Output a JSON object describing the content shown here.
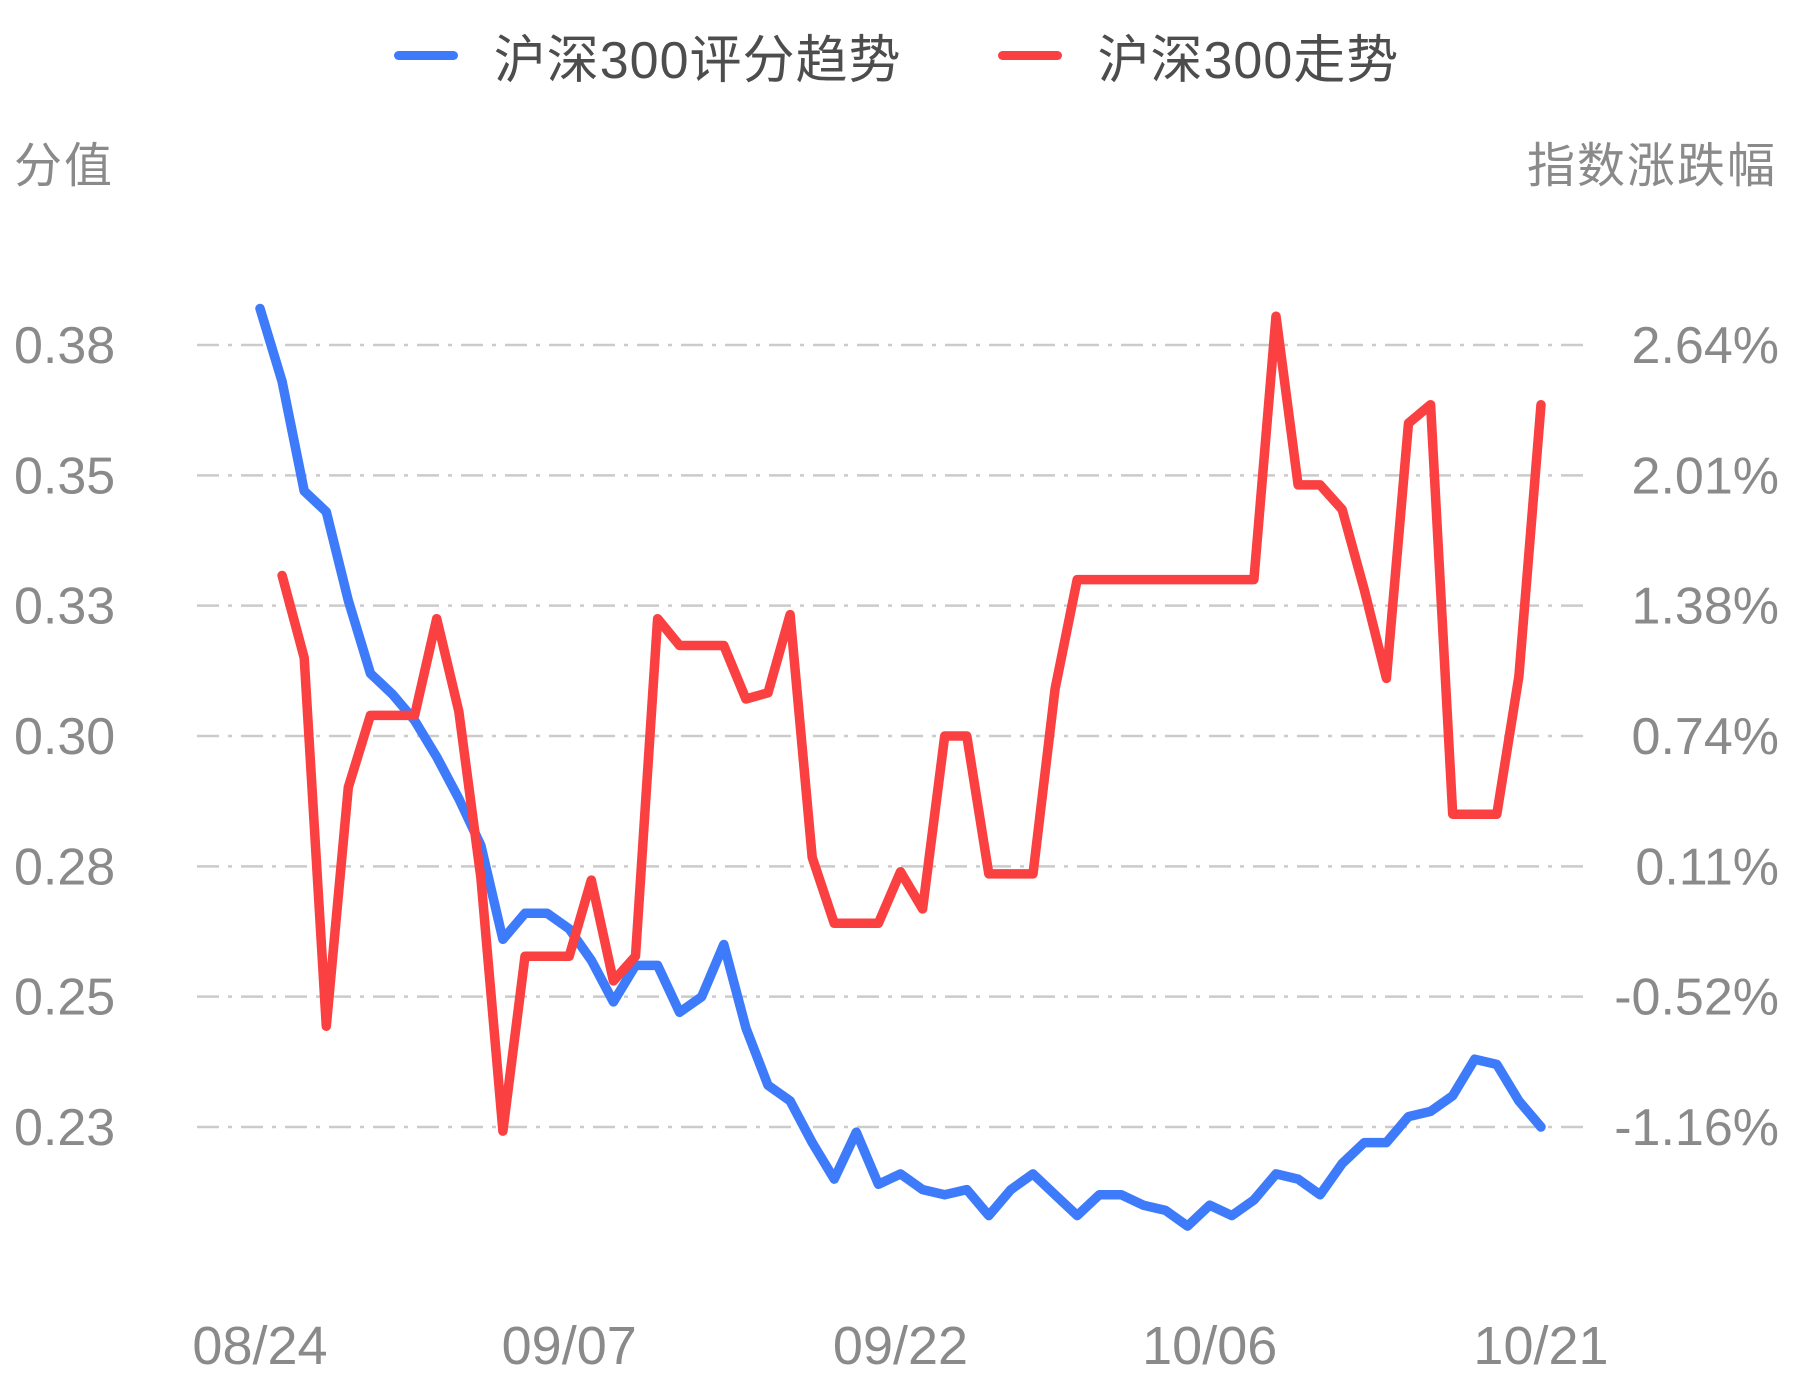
{
  "legend": {
    "items": [
      {
        "label": "沪深300评分趋势",
        "color": "#3e7bfa"
      },
      {
        "label": "沪深300走势",
        "color": "#fa4040"
      }
    ]
  },
  "axes": {
    "left_title": "分值",
    "right_title": "指数涨跌幅"
  },
  "colors": {
    "score_line": "#3e7bfa",
    "index_line": "#fa4040",
    "gridline": "#cbcbcb",
    "tick_text": "#8a8a8a",
    "legend_text": "#4d4d4d",
    "background": "#ffffff"
  },
  "chart_data": {
    "type": "line",
    "title": "",
    "legend_position": "top",
    "grid": true,
    "x": [
      "08/24",
      "08/25",
      "08/26",
      "08/27",
      "08/28",
      "08/29",
      "08/30",
      "08/31",
      "09/01",
      "09/02",
      "09/03",
      "09/04",
      "09/05",
      "09/06",
      "09/07",
      "09/08",
      "09/09",
      "09/10",
      "09/11",
      "09/12",
      "09/13",
      "09/14",
      "09/15",
      "09/16",
      "09/17",
      "09/18",
      "09/19",
      "09/20",
      "09/21",
      "09/22",
      "09/23",
      "09/24",
      "09/25",
      "09/26",
      "09/27",
      "09/28",
      "09/29",
      "09/30",
      "10/01",
      "10/02",
      "10/03",
      "10/04",
      "10/05",
      "10/06",
      "10/07",
      "10/08",
      "10/09",
      "10/10",
      "10/11",
      "10/12",
      "10/13",
      "10/14",
      "10/15",
      "10/16",
      "10/17",
      "10/18",
      "10/19",
      "10/20",
      "10/21"
    ],
    "x_tick_labels": [
      "08/24",
      "09/07",
      "09/22",
      "10/06",
      "10/21"
    ],
    "x_tick_indices": [
      0,
      14,
      29,
      43,
      58
    ],
    "left_axis": {
      "title": "分值",
      "tick_labels": [
        "0.38",
        "0.35",
        "0.33",
        "0.30",
        "0.28",
        "0.25",
        "0.23"
      ],
      "max": 0.38,
      "min": 0.23
    },
    "right_axis": {
      "title": "指数涨跌幅",
      "tick_labels": [
        "2.64%",
        "2.01%",
        "1.38%",
        "0.74%",
        "0.11%",
        "-0.52%",
        "-1.16%"
      ],
      "max": 2.64,
      "min": -1.16
    },
    "series": [
      {
        "name": "沪深300评分趋势",
        "axis": "left",
        "color": "#3e7bfa",
        "values": [
          0.387,
          0.373,
          0.352,
          0.348,
          0.331,
          0.317,
          0.313,
          0.308,
          0.301,
          0.293,
          0.284,
          0.266,
          0.271,
          0.271,
          0.268,
          0.262,
          0.254,
          0.261,
          0.261,
          0.252,
          0.255,
          0.265,
          0.249,
          0.238,
          0.235,
          0.227,
          0.22,
          0.229,
          0.219,
          0.221,
          0.218,
          0.217,
          0.218,
          0.213,
          0.218,
          0.221,
          0.217,
          0.213,
          0.217,
          0.217,
          0.215,
          0.214,
          0.211,
          0.215,
          0.213,
          0.216,
          0.221,
          0.22,
          0.217,
          0.223,
          0.227,
          0.227,
          0.232,
          0.233,
          0.236,
          0.243,
          0.242,
          0.235,
          0.23
        ]
      },
      {
        "name": "沪深300走势",
        "axis": "right",
        "color": "#fa4040",
        "values": [
          null,
          1.52,
          1.12,
          -0.67,
          0.49,
          0.84,
          0.84,
          0.84,
          1.31,
          0.86,
          0.05,
          -1.18,
          -0.33,
          -0.33,
          -0.33,
          0.04,
          -0.45,
          -0.33,
          1.31,
          1.18,
          1.18,
          1.18,
          0.92,
          0.95,
          1.33,
          0.15,
          -0.17,
          -0.17,
          -0.17,
          0.08,
          -0.1,
          0.74,
          0.74,
          0.07,
          0.07,
          0.07,
          0.97,
          1.5,
          1.5,
          1.5,
          1.5,
          1.5,
          1.5,
          1.5,
          1.5,
          1.5,
          2.78,
          1.96,
          1.96,
          1.84,
          1.45,
          1.02,
          2.26,
          2.35,
          0.36,
          0.36,
          0.36,
          1.03,
          2.35
        ]
      }
    ]
  }
}
